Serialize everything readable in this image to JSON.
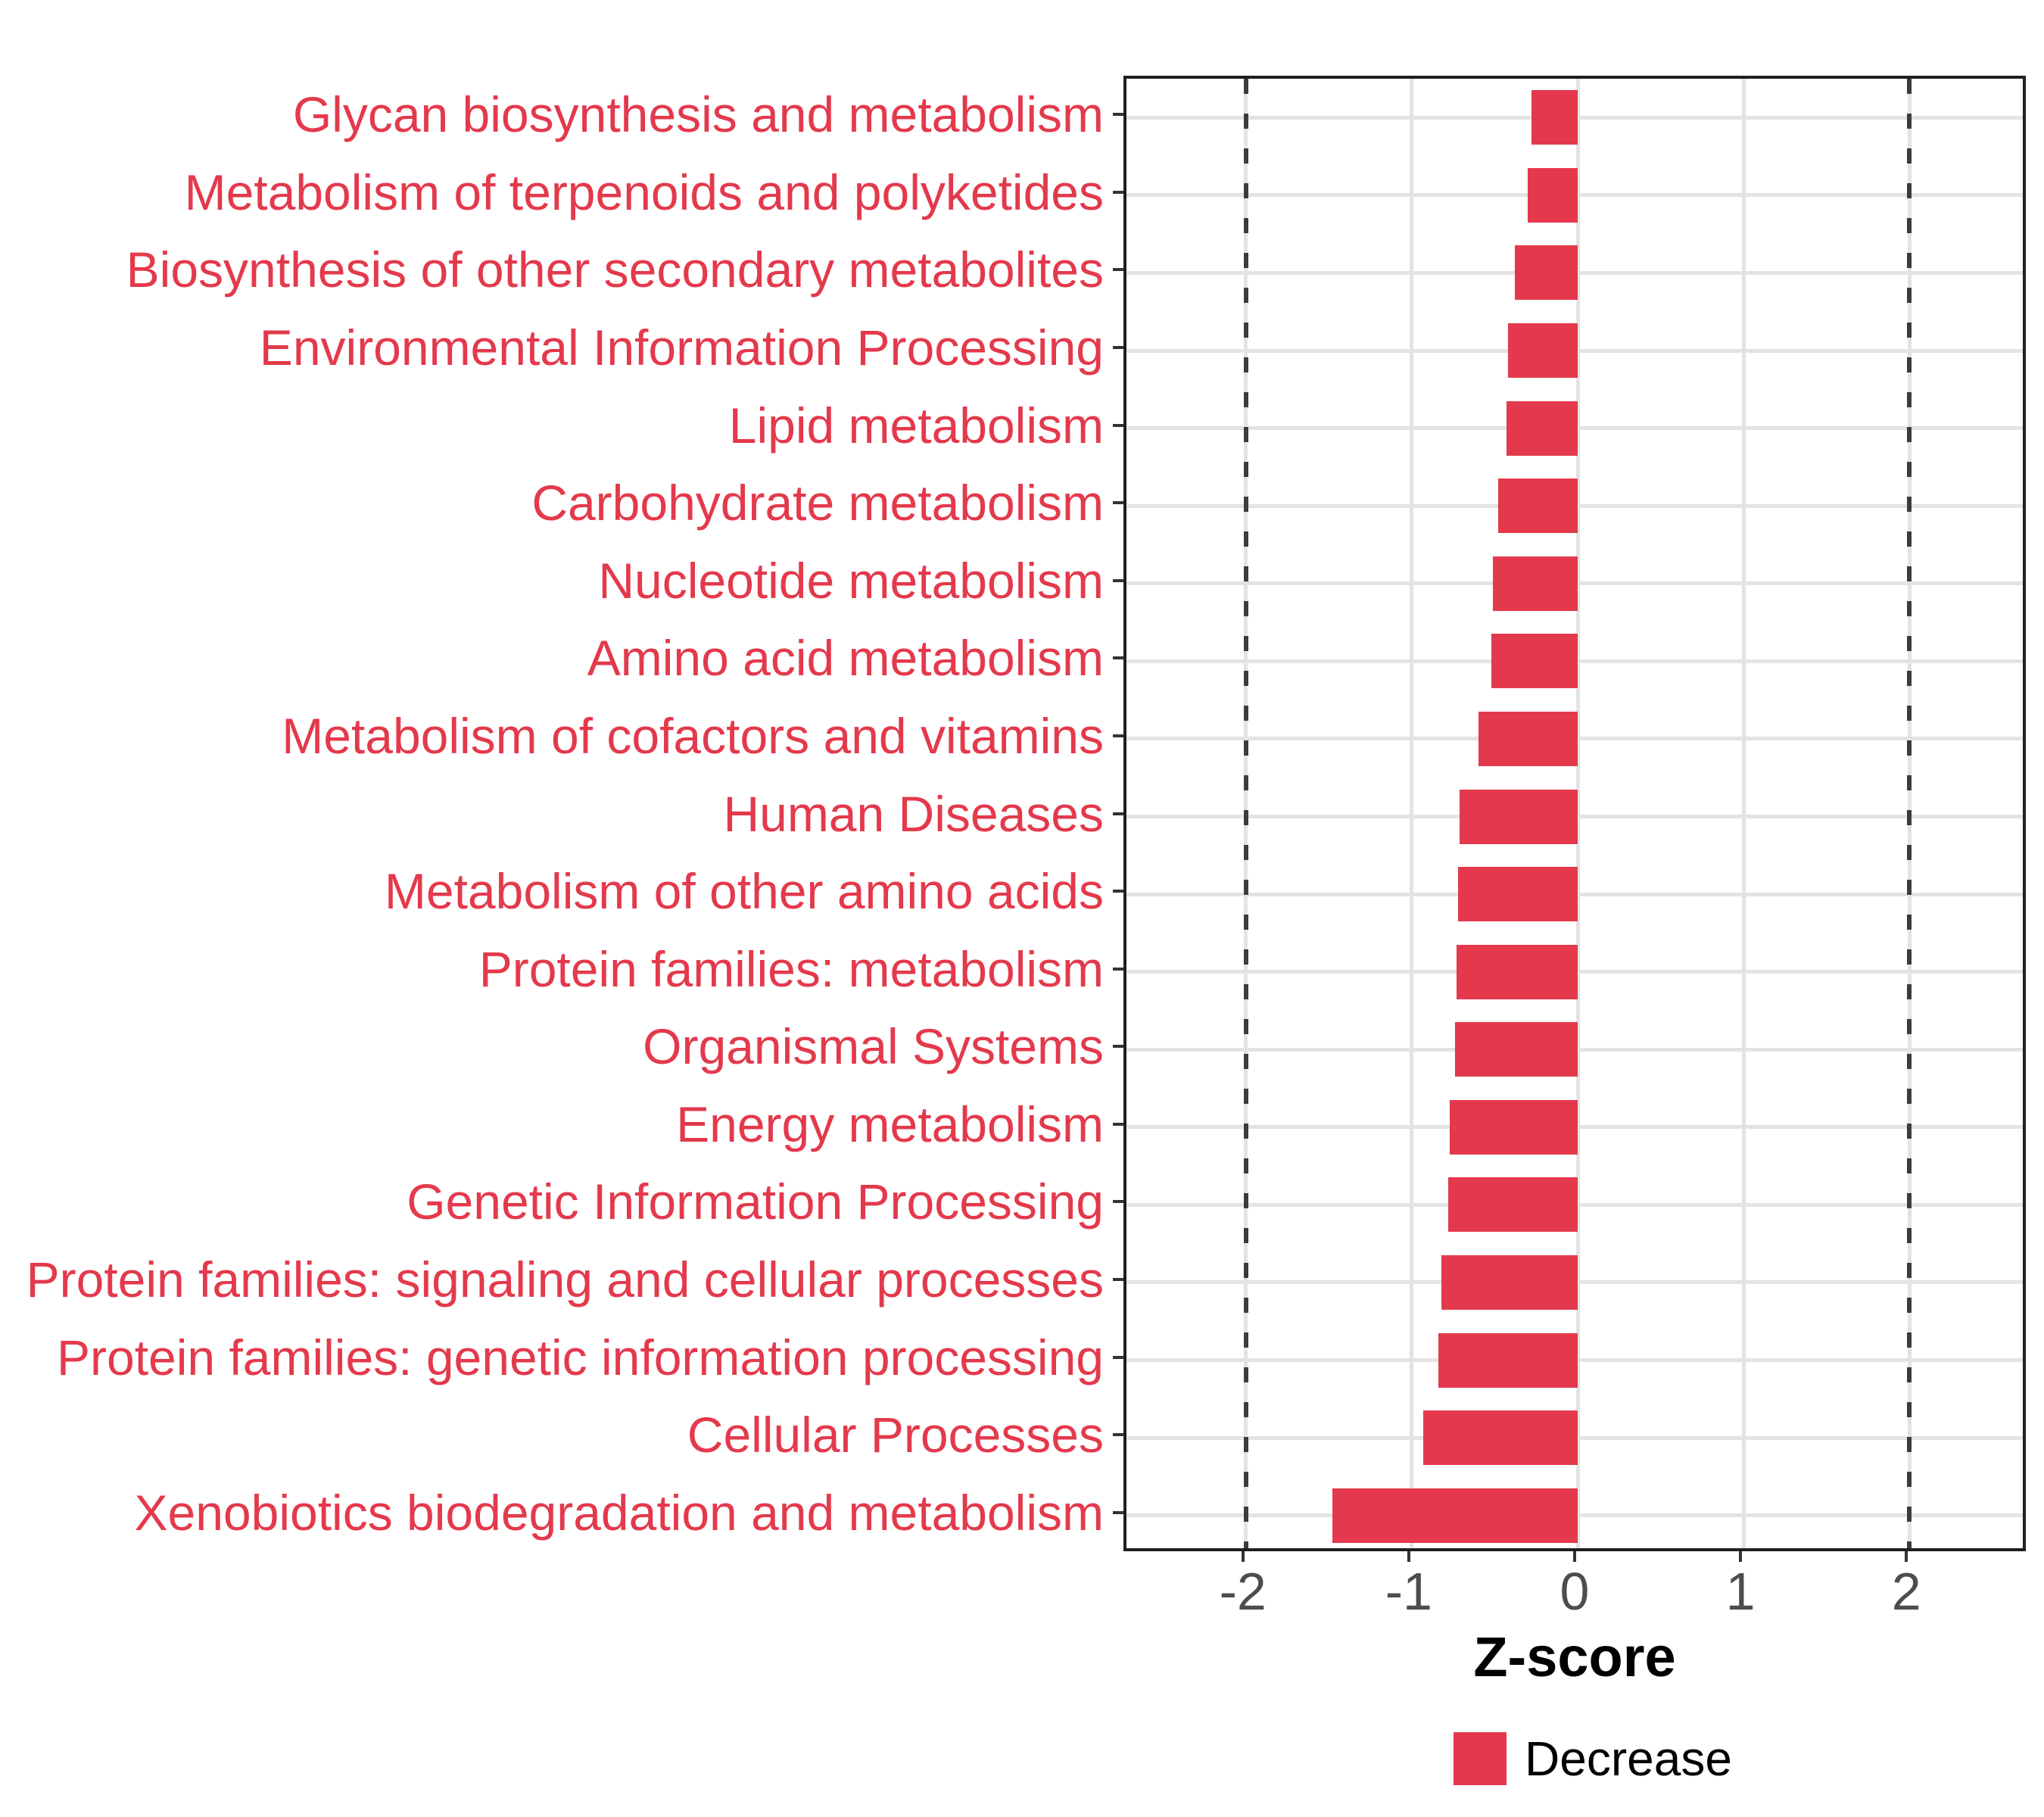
{
  "chart_data": {
    "type": "bar",
    "orientation": "horizontal",
    "title": "",
    "xlabel": "Z-score",
    "ylabel": "",
    "categories": [
      "Glycan biosynthesis and metabolism",
      "Metabolism of terpenoids and polyketides",
      "Biosynthesis of other secondary metabolites",
      "Environmental Information Processing",
      "Lipid metabolism",
      "Carbohydrate metabolism",
      "Nucleotide metabolism",
      "Amino acid metabolism",
      "Metabolism of cofactors and vitamins",
      "Human Diseases",
      "Metabolism of other amino acids",
      "Protein families: metabolism",
      "Organismal Systems",
      "Energy metabolism",
      "Genetic Information Processing",
      "Protein families: signaling and cellular processes",
      "Protein families: genetic information processing",
      "Cellular Processes",
      "Xenobiotics biodegradation and metabolism"
    ],
    "series": [
      {
        "name": "Decrease",
        "values": [
          -0.28,
          -0.3,
          -0.38,
          -0.42,
          -0.43,
          -0.48,
          -0.51,
          -0.52,
          -0.6,
          -0.71,
          -0.72,
          -0.73,
          -0.74,
          -0.77,
          -0.78,
          -0.82,
          -0.84,
          -0.93,
          -1.48
        ]
      }
    ],
    "xlim": [
      -2.72,
      2.72
    ],
    "x_ticks": [
      {
        "value": -2,
        "label": "-2"
      },
      {
        "value": -1,
        "label": "-1"
      },
      {
        "value": 0,
        "label": "0"
      },
      {
        "value": 1,
        "label": "1"
      },
      {
        "value": 2,
        "label": "2"
      }
    ],
    "guideline_values": [
      -2,
      2
    ],
    "grid": "major-only",
    "legend": {
      "position": "bottom",
      "entries": [
        {
          "label": "Decrease",
          "color": "#E4394C"
        }
      ]
    }
  },
  "colors": {
    "bar": "#E4394C",
    "category_label": "#E4394C",
    "tick_label": "#4D4D4D",
    "grid": "#E3E3E3",
    "guideline": "#3C3C3C",
    "tick_mark": "#333333",
    "panel_border": "#1F1F1F",
    "axis_title": "#000000",
    "background": "#FFFFFF"
  }
}
